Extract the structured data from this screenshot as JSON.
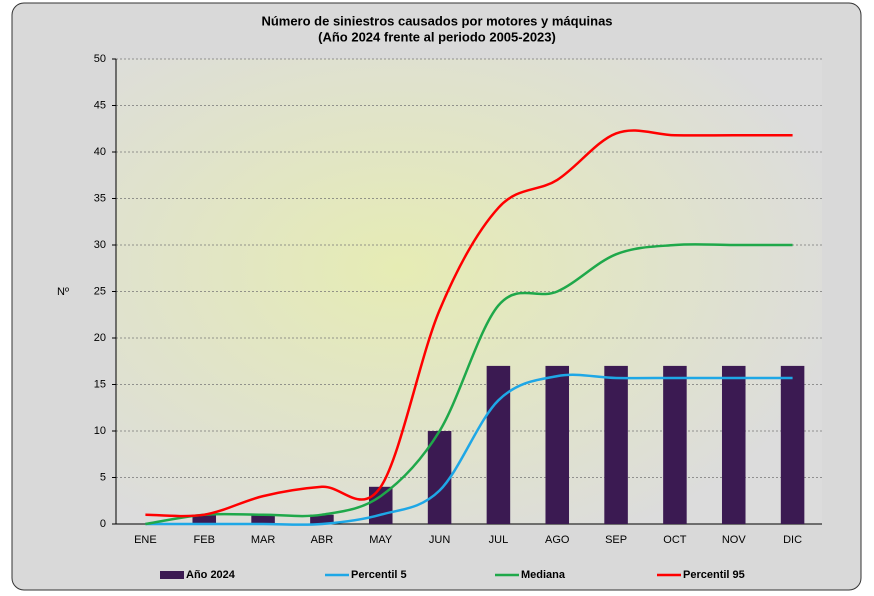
{
  "chart_data": {
    "type": "bar+line",
    "title": "Número de siniestros causados por motores y máquinas",
    "subtitle": "(Año 2024 frente al periodo 2005-2023)",
    "ylabel": "Nº",
    "categories": [
      "ENE",
      "FEB",
      "MAR",
      "ABR",
      "MAY",
      "JUN",
      "JUL",
      "AGO",
      "SEP",
      "OCT",
      "NOV",
      "DIC"
    ],
    "ylim": [
      0,
      50
    ],
    "yticks": [
      0,
      5,
      10,
      15,
      20,
      25,
      30,
      35,
      40,
      45,
      50
    ],
    "grid": true,
    "legend": "bottom",
    "series": [
      {
        "name": "Año 2024",
        "type": "bar",
        "color": "#3b1a52",
        "values": [
          0,
          1,
          1,
          1,
          4,
          10,
          17,
          17,
          17,
          17,
          17,
          17
        ]
      },
      {
        "name": "Percentil 5",
        "type": "line",
        "color": "#1ea7e6",
        "values": [
          0,
          0,
          0,
          0,
          1,
          3.6,
          13.3,
          15.9,
          15.7,
          15.7,
          15.7,
          15.7
        ]
      },
      {
        "name": "Mediana",
        "type": "line",
        "color": "#1fa84a",
        "values": [
          0,
          1,
          1,
          1,
          3,
          10,
          23.5,
          25,
          29,
          30,
          30,
          30
        ]
      },
      {
        "name": "Percentil 95",
        "type": "line",
        "color": "#ff0000",
        "values": [
          1,
          1,
          3,
          4,
          4,
          23,
          34,
          37,
          42,
          41.8,
          41.8,
          41.8
        ]
      }
    ]
  }
}
